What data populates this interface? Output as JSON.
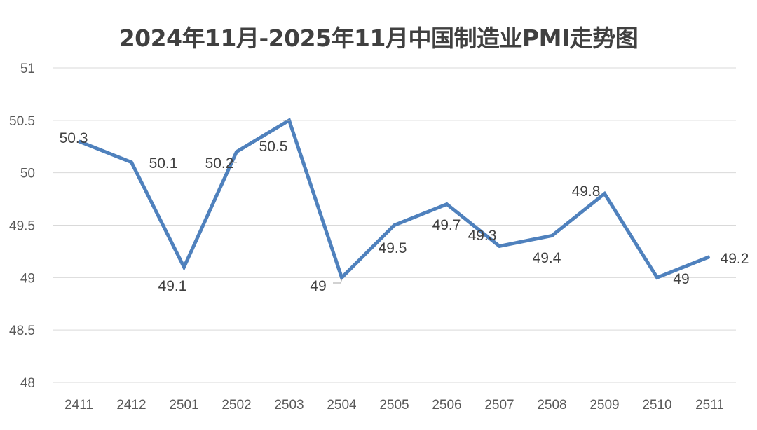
{
  "chart_data": {
    "type": "line",
    "title": "2024年11月-2025年11月中国制造业PMI走势图",
    "xlabel": "",
    "ylabel": "",
    "categories": [
      "2411",
      "2412",
      "2501",
      "2502",
      "2503",
      "2504",
      "2505",
      "2506",
      "2507",
      "2508",
      "2509",
      "2510",
      "2511"
    ],
    "values": [
      50.3,
      50.1,
      49.1,
      50.2,
      50.5,
      49,
      49.5,
      49.7,
      49.3,
      49.4,
      49.8,
      49,
      49.2
    ],
    "data_labels": [
      "50.3",
      "50.1",
      "49.1",
      "50.2",
      "50.5",
      "49",
      "49.5",
      "49.7",
      "49.3",
      "49.4",
      "49.8",
      "49",
      "49.2"
    ],
    "ylim": [
      48,
      51
    ],
    "yticks": [
      "48",
      "48.5",
      "49",
      "49.5",
      "50",
      "50.5",
      "51"
    ],
    "grid": true,
    "legend": "none",
    "line_color": "#4f81bd",
    "grid_color": "#d9d9d9"
  }
}
